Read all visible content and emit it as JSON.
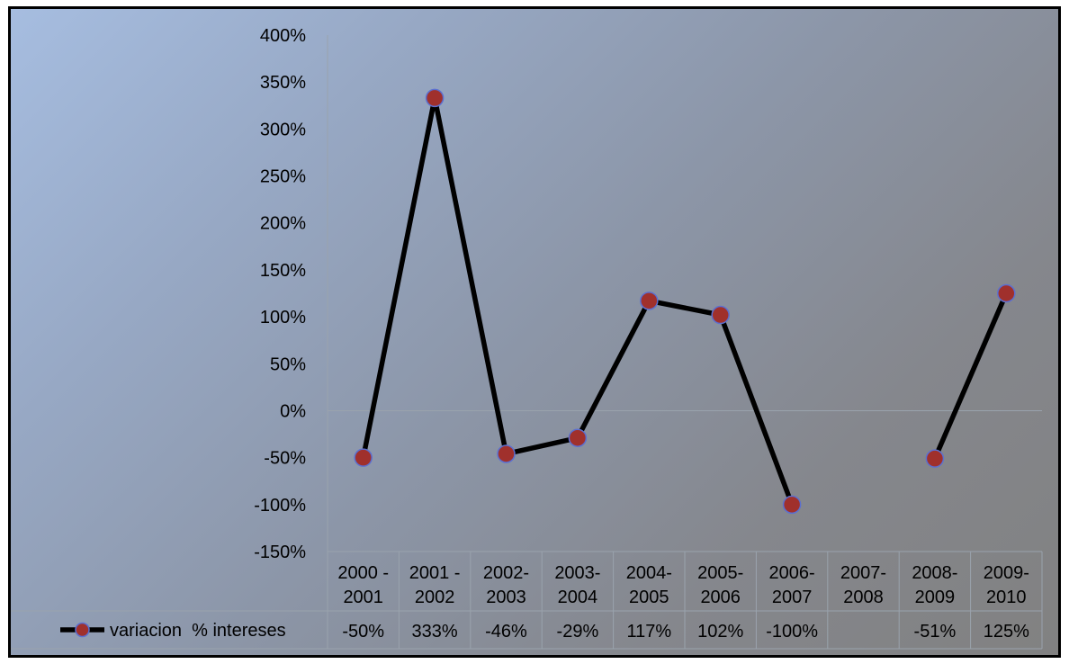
{
  "chart_data": {
    "type": "line",
    "categories": [
      [
        "2000 -",
        "2001"
      ],
      [
        "2001 -",
        "2002"
      ],
      [
        "2002-",
        "2003"
      ],
      [
        "2003-",
        "2004"
      ],
      [
        "2004-",
        "2005"
      ],
      [
        "2005-",
        "2006"
      ],
      [
        "2006-",
        "2007"
      ],
      [
        "2007-",
        "2008"
      ],
      [
        "2008-",
        "2009"
      ],
      [
        "2009-",
        "2010"
      ]
    ],
    "series": [
      {
        "name": "variacion  % intereses",
        "values": [
          -0.5,
          3.33,
          -0.46,
          -0.29,
          1.17,
          1.02,
          -1.0,
          null,
          -0.51,
          1.25
        ],
        "labels": [
          "-50%",
          "333%",
          "-46%",
          "-29%",
          "117%",
          "102%",
          "-100%",
          "",
          "-51%",
          "125%"
        ],
        "line_color": "#000000",
        "marker_color": "#a0302c",
        "marker_edge": "#5b6fd0"
      }
    ],
    "ylim": [
      -1.5,
      4.0
    ],
    "yticks": [
      4.0,
      3.5,
      3.0,
      2.5,
      2.0,
      1.5,
      1.0,
      0.5,
      0.0,
      -0.5,
      -1.0,
      -1.5
    ],
    "ytick_labels": [
      "400%",
      "350%",
      "300%",
      "250%",
      "200%",
      "150%",
      "100%",
      "50%",
      "0%",
      "-50%",
      "-100%",
      "-150%"
    ],
    "title": "",
    "xlabel": "",
    "ylabel": "",
    "grid": false,
    "legend": "data-table",
    "data_table": true
  }
}
